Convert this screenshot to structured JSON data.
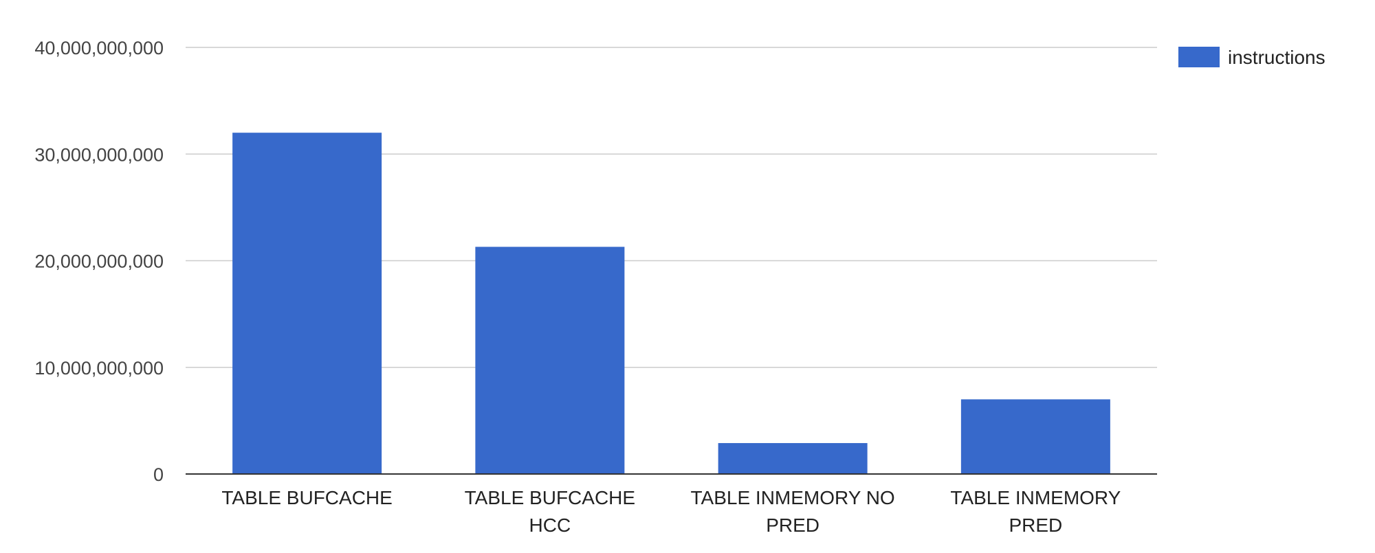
{
  "chart_data": {
    "type": "bar",
    "title": "",
    "xlabel": "",
    "ylabel": "",
    "categories": [
      [
        "TABLE BUFCACHE"
      ],
      [
        "TABLE BUFCACHE",
        "HCC"
      ],
      [
        "TABLE INMEMORY NO",
        "PRED"
      ],
      [
        "TABLE INMEMORY",
        "PRED"
      ]
    ],
    "series": [
      {
        "name": "instructions",
        "color": "#3769cb",
        "values": [
          32000000000,
          21300000000,
          2900000000,
          7000000000
        ]
      }
    ],
    "ylim": [
      0,
      40000000000
    ],
    "yticks": [
      0,
      10000000000,
      20000000000,
      30000000000,
      40000000000
    ],
    "ytick_labels": [
      "0",
      "10,000,000,000",
      "20,000,000,000",
      "30,000,000,000",
      "40,000,000,000"
    ],
    "grid": true,
    "legend_position": "top-right"
  }
}
